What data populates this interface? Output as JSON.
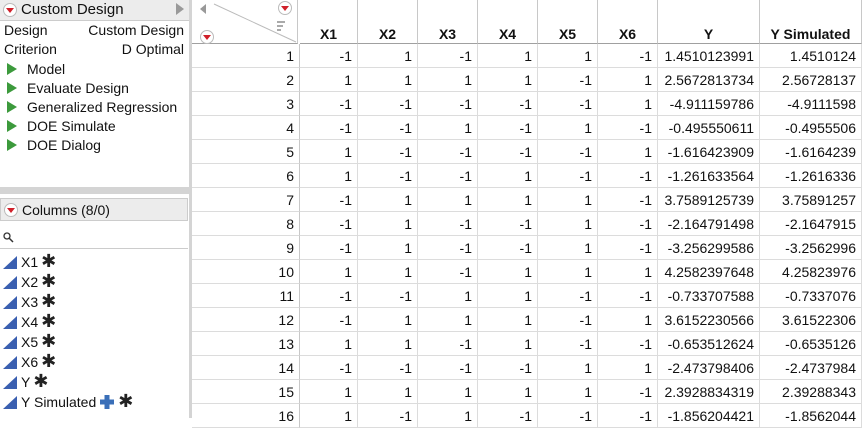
{
  "panel": {
    "title": "Custom Design",
    "properties": [
      [
        "Design",
        "Custom Design"
      ],
      [
        "Criterion",
        "D Optimal"
      ]
    ],
    "scripts": [
      "Model",
      "Evaluate Design",
      "Generalized Regression",
      "DOE Simulate",
      "DOE Dialog"
    ]
  },
  "columns_panel": {
    "title": "Columns (8/0)",
    "columns": [
      "X1",
      "X2",
      "X3",
      "X4",
      "X5",
      "X6",
      "Y",
      "Y Simulated"
    ]
  },
  "table": {
    "headers": [
      "X1",
      "X2",
      "X3",
      "X4",
      "X5",
      "X6",
      "Y",
      "Y Simulated"
    ],
    "rows": [
      [
        "1",
        "-1",
        "1",
        "-1",
        "1",
        "1",
        "-1",
        "1.4510123991",
        "1.4510124"
      ],
      [
        "2",
        "1",
        "1",
        "1",
        "1",
        "-1",
        "1",
        "2.5672813734",
        "2.56728137"
      ],
      [
        "3",
        "-1",
        "-1",
        "-1",
        "-1",
        "-1",
        "1",
        "-4.911159786",
        "-4.9111598"
      ],
      [
        "4",
        "-1",
        "-1",
        "1",
        "-1",
        "1",
        "-1",
        "-0.495550611",
        "-0.4955506"
      ],
      [
        "5",
        "1",
        "-1",
        "-1",
        "-1",
        "-1",
        "1",
        "-1.616423909",
        "-1.6164239"
      ],
      [
        "6",
        "1",
        "-1",
        "-1",
        "1",
        "-1",
        "-1",
        "-1.261633564",
        "-1.2616336"
      ],
      [
        "7",
        "-1",
        "1",
        "1",
        "1",
        "1",
        "-1",
        "3.7589125739",
        "3.75891257"
      ],
      [
        "8",
        "-1",
        "1",
        "-1",
        "-1",
        "1",
        "-1",
        "-2.164791498",
        "-2.1647915"
      ],
      [
        "9",
        "-1",
        "1",
        "-1",
        "-1",
        "1",
        "-1",
        "-3.256299586",
        "-3.2562996"
      ],
      [
        "10",
        "1",
        "1",
        "-1",
        "1",
        "1",
        "1",
        "4.2582397648",
        "4.25823976"
      ],
      [
        "11",
        "-1",
        "-1",
        "1",
        "1",
        "-1",
        "-1",
        "-0.733707588",
        "-0.7337076"
      ],
      [
        "12",
        "-1",
        "1",
        "1",
        "1",
        "-1",
        "1",
        "3.6152230566",
        "3.61522306"
      ],
      [
        "13",
        "1",
        "1",
        "-1",
        "1",
        "-1",
        "-1",
        "-0.653512624",
        "-0.6535126"
      ],
      [
        "14",
        "-1",
        "-1",
        "-1",
        "-1",
        "1",
        "1",
        "-2.473798406",
        "-2.4737984"
      ],
      [
        "15",
        "1",
        "1",
        "1",
        "1",
        "1",
        "-1",
        "2.3928834319",
        "2.39288343"
      ],
      [
        "16",
        "1",
        "-1",
        "1",
        "-1",
        "-1",
        "-1",
        "-1.856204421",
        "-1.8562044"
      ]
    ]
  }
}
